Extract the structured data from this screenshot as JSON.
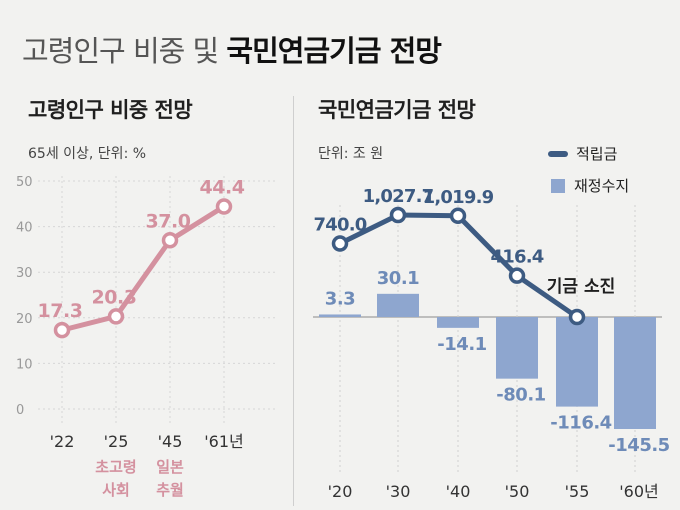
{
  "header": {
    "title_light": "고령인구 비중 및",
    "title_bold": "국민연금기금 전망"
  },
  "left_panel": {
    "title": "고령인구 비중 전망",
    "unit": "65세 이상, 단위: %"
  },
  "right_panel": {
    "title": "국민연금기금 전망",
    "unit": "단위: 조 원"
  },
  "legend": {
    "line_label": "적립금",
    "bar_label": "재정수지"
  },
  "colors": {
    "pink": "#d4919f",
    "line": "#3d5b82",
    "bar": "#8ea6cf",
    "neg_label": "#6e8bb8"
  },
  "chart_data": [
    {
      "type": "line",
      "title": "고령인구 비중 전망",
      "subtitle": "65세 이상, 단위: %",
      "categories": [
        "'22",
        "'25",
        "'45",
        "'61년"
      ],
      "values": [
        17.3,
        20.3,
        37.0,
        44.4
      ],
      "value_labels": [
        "17.3",
        "20.3",
        "37.0",
        "44.4"
      ],
      "ylim": [
        0,
        50
      ],
      "yticks": [
        0,
        10,
        20,
        30,
        40,
        50
      ],
      "annotations": [
        {
          "category": "'25",
          "text": [
            "초고령",
            "사회"
          ]
        },
        {
          "category": "'45",
          "text": [
            "일본",
            "추월"
          ]
        }
      ],
      "grid": true
    },
    {
      "type": "bar+line",
      "title": "국민연금기금 전망",
      "subtitle": "단위: 조 원",
      "categories": [
        "'20",
        "'30",
        "'40",
        "'50",
        "'55",
        "'60년"
      ],
      "series": [
        {
          "name": "적립금",
          "type": "line",
          "values": [
            740.0,
            1027.7,
            1019.9,
            416.4,
            0,
            null
          ],
          "labels": [
            "740.0",
            "1,027.7",
            "1,019.9",
            "416.4",
            "",
            ""
          ]
        },
        {
          "name": "재정수지",
          "type": "bar",
          "values": [
            3.3,
            30.1,
            -14.1,
            -80.1,
            -116.4,
            -145.5
          ],
          "labels": [
            "3.3",
            "30.1",
            "-14.1",
            "-80.1",
            "-116.4",
            "-145.5"
          ]
        }
      ],
      "annotations": [
        {
          "category": "'55",
          "text": "기금 소진"
        }
      ],
      "legend_position": "top-right"
    }
  ]
}
